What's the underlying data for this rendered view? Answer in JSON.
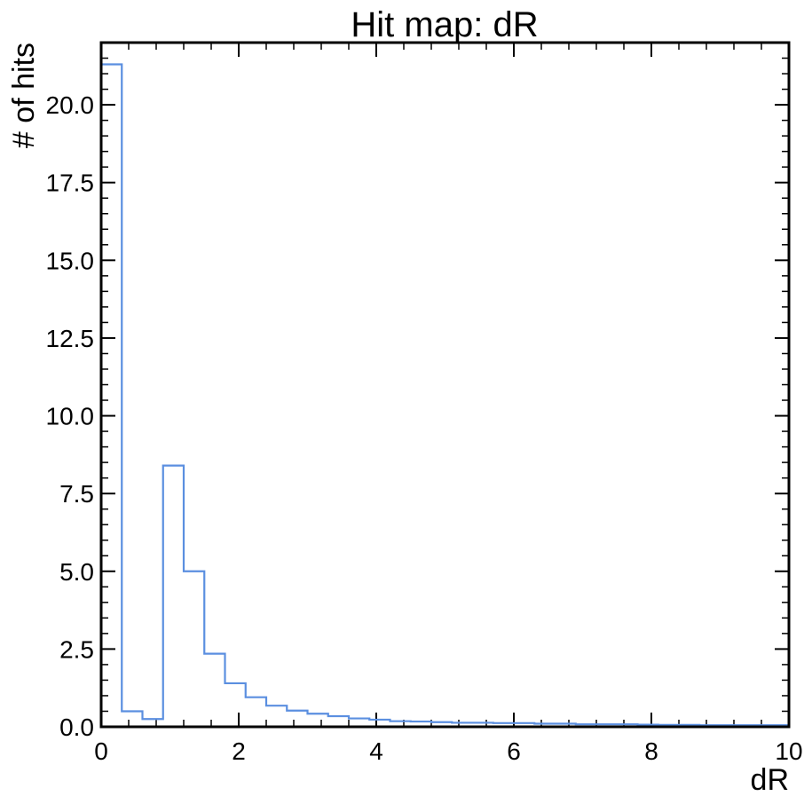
{
  "chart_data": {
    "type": "histogram",
    "title": "Hit map: dR",
    "xlabel": "dR",
    "ylabel": "# of hits",
    "xlim": [
      0,
      10
    ],
    "ylim": [
      0,
      22
    ],
    "x_ticks": [
      0,
      2,
      4,
      6,
      8,
      10
    ],
    "x_tick_labels": [
      "0",
      "2",
      "4",
      "6",
      "8",
      "10"
    ],
    "y_ticks": [
      0,
      2.5,
      5,
      7.5,
      10,
      12.5,
      15,
      17.5,
      20
    ],
    "y_tick_labels": [
      "0.0",
      "2.5",
      "5.0",
      "7.5",
      "10.0",
      "12.5",
      "15.0",
      "17.5",
      "20.0"
    ],
    "grid": false,
    "line_color": "#5b8fe0",
    "bin_edges": [
      0,
      0.3,
      0.6,
      0.9,
      1.2,
      1.5,
      1.8,
      2.1,
      2.4,
      2.7,
      3.0,
      3.3,
      3.6,
      3.9,
      4.2,
      4.5,
      4.8,
      5.1,
      5.4,
      5.7,
      6.0,
      6.3,
      6.6,
      6.9,
      7.2,
      7.5,
      7.8,
      8.1,
      8.4,
      8.7,
      9.0,
      9.3,
      9.6,
      10.0
    ],
    "values": [
      21.3,
      0.5,
      0.25,
      8.4,
      5.0,
      2.35,
      1.4,
      0.95,
      0.68,
      0.52,
      0.42,
      0.34,
      0.27,
      0.23,
      0.18,
      0.17,
      0.15,
      0.13,
      0.13,
      0.12,
      0.12,
      0.1,
      0.1,
      0.08,
      0.08,
      0.08,
      0.07,
      0.06,
      0.06,
      0.05,
      0.05,
      0.05,
      0.05
    ]
  }
}
